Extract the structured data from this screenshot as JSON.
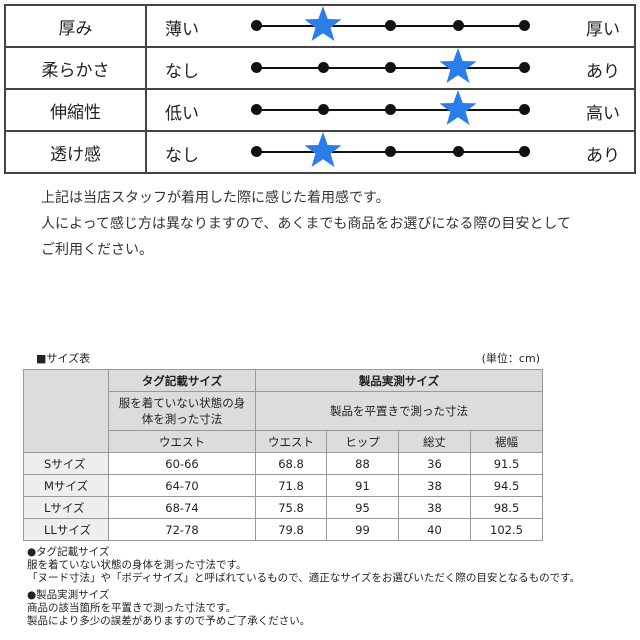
{
  "feel_rows": [
    {
      "label": "厚み",
      "left": "薄い",
      "right": "厚い",
      "level": 2
    },
    {
      "label": "柔らかさ",
      "left": "なし",
      "right": "あり",
      "level": 4
    },
    {
      "label": "伸縮性",
      "left": "低い",
      "right": "高い",
      "level": 4
    },
    {
      "label": "透け感",
      "left": "なし",
      "right": "あり",
      "level": 2
    }
  ],
  "scale_points": 5,
  "accent_color": "#2b7de9",
  "notes": [
    "上記は当店スタッフが着用した際に感じた着用感です。",
    "人によって感じ方は異なりますので、あくまでも商品をお選びになる際の目安として",
    "ご利用ください。"
  ],
  "size_chart": {
    "title": "■サイズ表",
    "unit": "(単位：cm)",
    "tag_header": "タグ記載サイズ",
    "tag_sub": "服を着ていない状態の身体を測った寸法",
    "actual_header": "製品実測サイズ",
    "actual_sub": "製品を平置きで測った寸法",
    "tag_cols": [
      "ウエスト"
    ],
    "actual_cols": [
      "ウエスト",
      "ヒップ",
      "総丈",
      "裾幅"
    ],
    "rows": [
      {
        "size": "Sサイズ",
        "tag": [
          "60-66"
        ],
        "actual": [
          "68.8",
          "88",
          "36",
          "91.5"
        ]
      },
      {
        "size": "Mサイズ",
        "tag": [
          "64-70"
        ],
        "actual": [
          "71.8",
          "91",
          "38",
          "94.5"
        ]
      },
      {
        "size": "Lサイズ",
        "tag": [
          "68-74"
        ],
        "actual": [
          "75.8",
          "95",
          "38",
          "98.5"
        ]
      },
      {
        "size": "LLサイズ",
        "tag": [
          "72-78"
        ],
        "actual": [
          "79.8",
          "99",
          "40",
          "102.5"
        ]
      }
    ]
  },
  "footnotes": [
    "●タグ記載サイズ",
    "服を着ていない状態の身体を測った寸法です。",
    "「ヌード寸法」や「ボディサイズ」と呼ばれているもので、適正なサイズをお選びいただく際の目安となるものです。",
    "●製品実測サイズ",
    "商品の該当箇所を平置きで測った寸法です。",
    "製品により多少の誤差がありますので予めご了承ください。"
  ]
}
